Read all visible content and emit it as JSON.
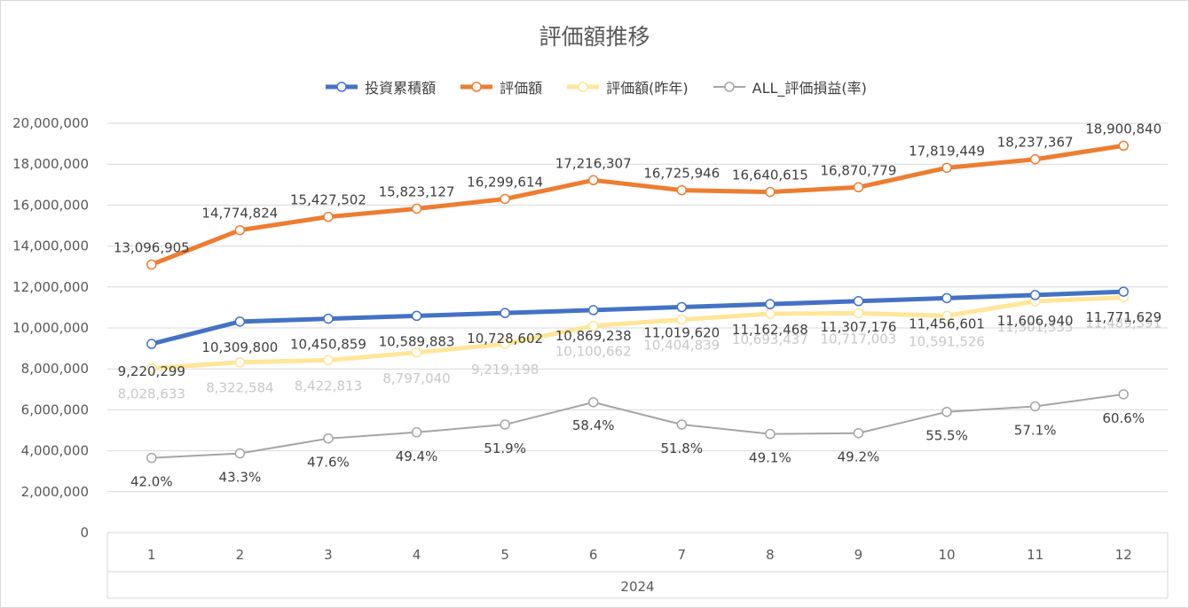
{
  "chart_data": {
    "type": "line",
    "title": "評価額推移",
    "categories": [
      "1",
      "2",
      "3",
      "4",
      "5",
      "6",
      "7",
      "8",
      "9",
      "10",
      "11",
      "12"
    ],
    "group_label": "2024",
    "ylim": [
      0,
      20000000
    ],
    "yticks": [
      0,
      2000000,
      4000000,
      6000000,
      8000000,
      10000000,
      12000000,
      14000000,
      16000000,
      18000000,
      20000000
    ],
    "ytick_labels": [
      "0",
      "2,000,000",
      "4,000,000",
      "6,000,000",
      "8,000,000",
      "10,000,000",
      "12,000,000",
      "14,000,000",
      "16,000,000",
      "18,000,000",
      "20,000,000"
    ],
    "grid": true,
    "legend_position": "top",
    "series": [
      {
        "name": "投資累積額",
        "color": "#4472c4",
        "values": [
          9220299,
          10309800,
          10450859,
          10589883,
          10728602,
          10869238,
          11019620,
          11162468,
          11307176,
          11456601,
          11606940,
          11771629
        ],
        "labels": [
          "9,220,299",
          "10,309,800",
          "10,450,859",
          "10,589,883",
          "10,728,602",
          "10,869,238",
          "11,019,620",
          "11,162,468",
          "11,307,176",
          "11,456,601",
          "11,606,940",
          "11,771,629"
        ],
        "label_color": "#404040"
      },
      {
        "name": "評価額",
        "color": "#ed7d31",
        "values": [
          13096905,
          14774824,
          15427502,
          15823127,
          16299614,
          17216307,
          16725946,
          16640615,
          16870779,
          17819449,
          18237367,
          18900840
        ],
        "labels": [
          "13,096,905",
          "14,774,824",
          "15,427,502",
          "15,823,127",
          "16,299,614",
          "17,216,307",
          "16,725,946",
          "16,640,615",
          "16,870,779",
          "17,819,449",
          "18,237,367",
          "18,900,840"
        ],
        "label_color": "#404040"
      },
      {
        "name": "評価額(昨年)",
        "color": "#ffe699",
        "values": [
          8028633,
          8322584,
          8422813,
          8797040,
          9219198,
          10100662,
          10404839,
          10693437,
          10717003,
          10591526,
          11301335,
          11489391
        ],
        "labels": [
          "8,028,633",
          "8,322,584",
          "8,422,813",
          "8,797,040",
          "9,219,198",
          "10,100,662",
          "10,404,839",
          "10,693,437",
          "10,717,003",
          "10,591,526",
          "11,301,335",
          "11,489,391"
        ],
        "label_color": "#c8c8c8"
      },
      {
        "name": "ALL_評価損益(率)",
        "color": "#a5a5a5",
        "values": [
          3650000,
          3870000,
          4600000,
          4900000,
          5280000,
          6370000,
          5280000,
          4820000,
          4860000,
          5900000,
          6170000,
          6760000
        ],
        "labels": [
          "42.0%",
          "43.3%",
          "47.6%",
          "49.4%",
          "51.9%",
          "58.4%",
          "51.8%",
          "49.1%",
          "49.2%",
          "55.5%",
          "57.1%",
          "60.6%"
        ],
        "label_color": "#404040"
      }
    ]
  }
}
